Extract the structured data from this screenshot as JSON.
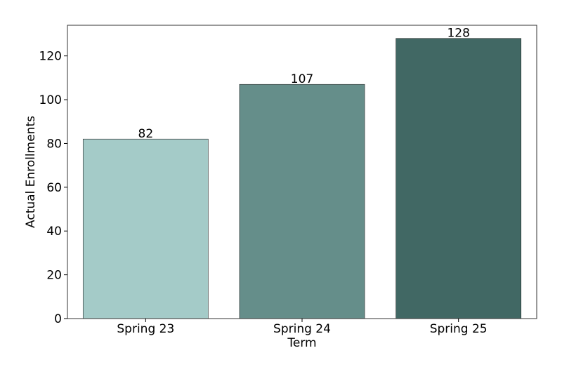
{
  "chart_data": {
    "type": "bar",
    "categories": [
      "Spring 23",
      "Spring 24",
      "Spring 25"
    ],
    "values": [
      82,
      107,
      128
    ],
    "data_labels": [
      "82",
      "107",
      "128"
    ],
    "bar_colors": [
      "#a4cbc8",
      "#658e8a",
      "#416864"
    ],
    "title": "",
    "xlabel": "Term",
    "ylabel": "Actual Enrollments",
    "ylim": [
      0,
      134
    ],
    "yticks": [
      0,
      20,
      40,
      60,
      80,
      100,
      120
    ],
    "grid": false,
    "legend": "none"
  }
}
